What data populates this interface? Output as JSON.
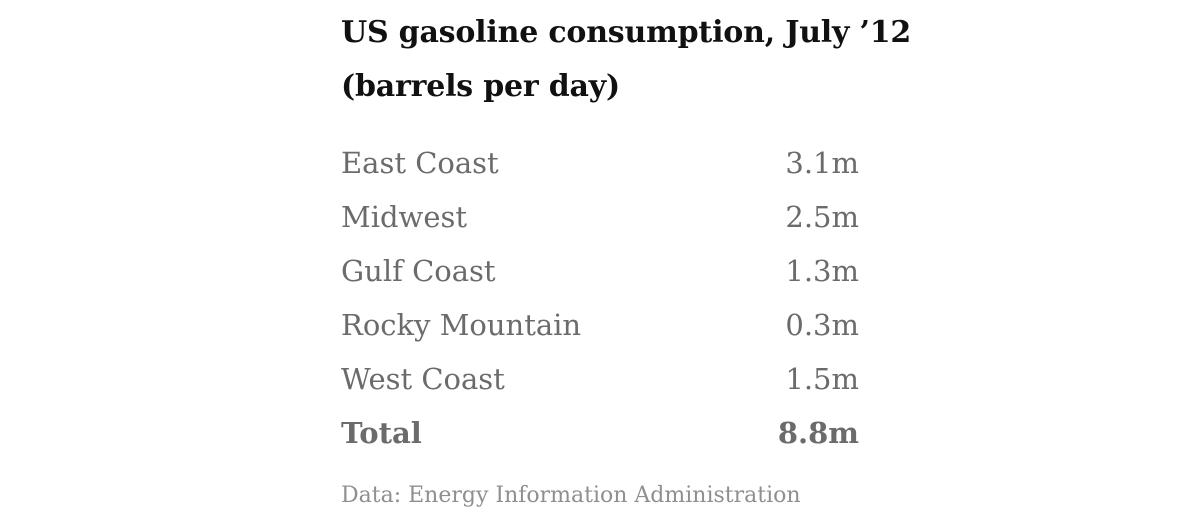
{
  "chart_data": {
    "type": "table",
    "title": "US gasoline consumption, July ’12",
    "subtitle": "(barrels per day)",
    "rows": [
      {
        "region": "East Coast",
        "value": 3.1,
        "display": "3.1m"
      },
      {
        "region": "Midwest",
        "value": 2.5,
        "display": "2.5m"
      },
      {
        "region": "Gulf Coast",
        "value": 1.3,
        "display": "1.3m"
      },
      {
        "region": "Rocky Mountain",
        "value": 0.3,
        "display": "0.3m"
      },
      {
        "region": "West Coast",
        "value": 1.5,
        "display": "1.5m"
      }
    ],
    "total": {
      "label": "Total",
      "value": 8.8,
      "display": "8.8m"
    },
    "source": "Data: Energy Information Administration"
  }
}
